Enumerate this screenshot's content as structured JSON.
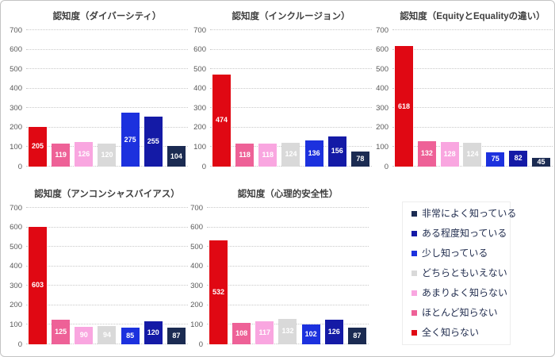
{
  "chart_data": [
    {
      "type": "bar",
      "title": "認知度（ダイバーシティ）",
      "categories": [
        "全く知らない",
        "ほとんど知らない",
        "あまりよく知らない",
        "どちらともいえない",
        "少し知っている",
        "ある程度知っている",
        "非常によく知っている"
      ],
      "values": [
        205,
        119,
        126,
        120,
        275,
        255,
        104
      ],
      "colors": [
        "#e00813",
        "#ee6197",
        "#f9a6e0",
        "#d9d9d9",
        "#1c31de",
        "#141aa6",
        "#1b2b52"
      ],
      "ylim": [
        0,
        700
      ],
      "yticks": [
        0,
        100,
        200,
        300,
        400,
        500,
        600,
        700
      ],
      "grid": "dotted-horizontal",
      "value_labels": "inside-center-white"
    },
    {
      "type": "bar",
      "title": "認知度（インクルージョン）",
      "categories": [
        "全く知らない",
        "ほとんど知らない",
        "あまりよく知らない",
        "どちらともいえない",
        "少し知っている",
        "ある程度知っている",
        "非常によく知っている"
      ],
      "values": [
        474,
        118,
        118,
        124,
        136,
        156,
        78
      ],
      "colors": [
        "#e00813",
        "#ee6197",
        "#f9a6e0",
        "#d9d9d9",
        "#1c31de",
        "#141aa6",
        "#1b2b52"
      ],
      "ylim": [
        0,
        700
      ],
      "yticks": [
        0,
        100,
        200,
        300,
        400,
        500,
        600,
        700
      ],
      "grid": "dotted-horizontal",
      "value_labels": "inside-center-white"
    },
    {
      "type": "bar",
      "title": "認知度（EquityとEqualityの違い）",
      "categories": [
        "全く知らない",
        "ほとんど知らない",
        "あまりよく知らない",
        "どちらともいえない",
        "少し知っている",
        "ある程度知っている",
        "非常によく知っている"
      ],
      "values": [
        618,
        132,
        128,
        124,
        75,
        82,
        45
      ],
      "colors": [
        "#e00813",
        "#ee6197",
        "#f9a6e0",
        "#d9d9d9",
        "#1c31de",
        "#141aa6",
        "#1b2b52"
      ],
      "ylim": [
        0,
        700
      ],
      "yticks": [
        0,
        100,
        200,
        300,
        400,
        500,
        600,
        700
      ],
      "grid": "dotted-horizontal",
      "value_labels": "inside-center-white"
    },
    {
      "type": "bar",
      "title": "認知度（アンコンシャスバイアス）",
      "categories": [
        "全く知らない",
        "ほとんど知らない",
        "あまりよく知らない",
        "どちらともいえない",
        "少し知っている",
        "ある程度知っている",
        "非常によく知っている"
      ],
      "values": [
        603,
        125,
        90,
        94,
        85,
        120,
        87
      ],
      "colors": [
        "#e00813",
        "#ee6197",
        "#f9a6e0",
        "#d9d9d9",
        "#1c31de",
        "#141aa6",
        "#1b2b52"
      ],
      "ylim": [
        0,
        700
      ],
      "yticks": [
        0,
        100,
        200,
        300,
        400,
        500,
        600,
        700
      ],
      "grid": "dotted-horizontal",
      "value_labels": "inside-center-white"
    },
    {
      "type": "bar",
      "title": "認知度（心理的安全性）",
      "categories": [
        "全く知らない",
        "ほとんど知らない",
        "あまりよく知らない",
        "どちらともいえない",
        "少し知っている",
        "ある程度知っている",
        "非常によく知っている"
      ],
      "values": [
        532,
        108,
        117,
        132,
        102,
        126,
        87
      ],
      "colors": [
        "#e00813",
        "#ee6197",
        "#f9a6e0",
        "#d9d9d9",
        "#1c31de",
        "#141aa6",
        "#1b2b52"
      ],
      "ylim": [
        0,
        700
      ],
      "yticks": [
        0,
        100,
        200,
        300,
        400,
        500,
        600,
        700
      ],
      "grid": "dotted-horizontal",
      "value_labels": "inside-center-white"
    }
  ],
  "legend": {
    "position": "bottom-right",
    "items": [
      {
        "label": "非常によく知っている",
        "color": "#1b2b52"
      },
      {
        "label": "ある程度知っている",
        "color": "#141aa6"
      },
      {
        "label": "少し知っている",
        "color": "#1c31de"
      },
      {
        "label": "どちらともいえない",
        "color": "#d9d9d9"
      },
      {
        "label": "あまりよく知らない",
        "color": "#f9a6e0"
      },
      {
        "label": "ほとんど知らない",
        "color": "#ee6197"
      },
      {
        "label": "全く知らない",
        "color": "#e00813"
      }
    ]
  }
}
